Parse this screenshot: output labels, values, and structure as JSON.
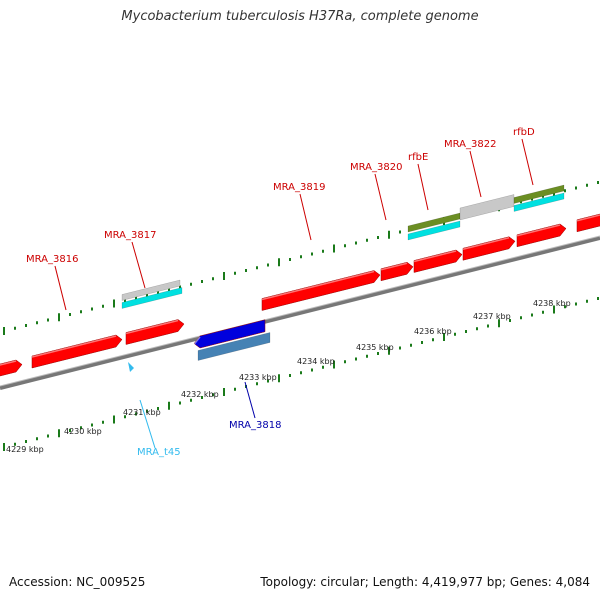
{
  "title": "Mycobacterium tuberculosis H37Ra, complete genome",
  "footer": {
    "accession": "Accession: NC_009525",
    "stats": "Topology: circular; Length: 4,419,977 bp; Genes: 4,084"
  },
  "colors": {
    "gene_red": "#ff0000",
    "gene_blue": "#0000dd",
    "trna_cyan": "#33bbee",
    "label_red": "#cc0000",
    "label_blue": "#0000aa",
    "label_cyan": "#33bbee",
    "tick_green": "#1a7a1a",
    "backbone": "#888888",
    "cds_grey": "#c8c8c8",
    "cds_cyan": "#00e0e0",
    "cds_olive": "#6b8e23",
    "cds_steelblue": "#4682b4"
  },
  "scale": {
    "unit": "kbp",
    "ticks": [
      {
        "label": "4229 kbp"
      },
      {
        "label": "4230 kbp"
      },
      {
        "label": "4231 kbp"
      },
      {
        "label": "4232 kbp"
      },
      {
        "label": "4233 kbp"
      },
      {
        "label": "4234 kbp"
      },
      {
        "label": "4235 kbp"
      },
      {
        "label": "4236 kbp"
      },
      {
        "label": "4237 kbp"
      },
      {
        "label": "4238 kbp"
      }
    ]
  },
  "gene_labels": [
    {
      "name": "MRA_3816",
      "strand": "forward"
    },
    {
      "name": "MRA_3817",
      "strand": "forward"
    },
    {
      "name": "MRA_3819",
      "strand": "forward"
    },
    {
      "name": "MRA_3820",
      "strand": "forward"
    },
    {
      "name": "rfbE",
      "strand": "forward"
    },
    {
      "name": "MRA_3822",
      "strand": "forward"
    },
    {
      "name": "rfbD",
      "strand": "forward"
    },
    {
      "name": "MRA_3818",
      "strand": "reverse"
    },
    {
      "name": "MRA_t45",
      "strand": "reverse"
    }
  ]
}
